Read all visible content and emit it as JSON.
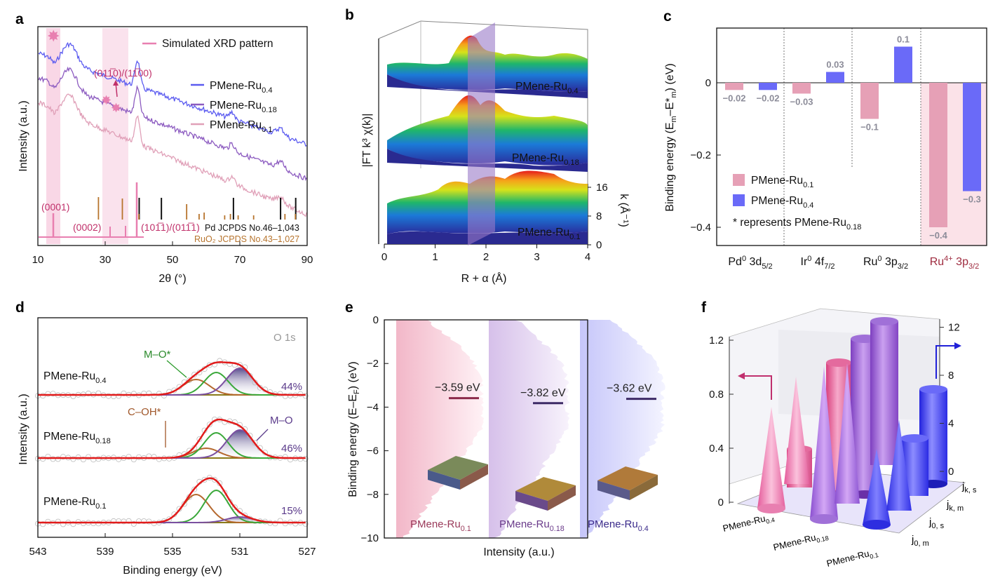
{
  "colors": {
    "ru04": "#5b5bf0",
    "ru018": "#8c5bc0",
    "ru01": "#e0a0b8",
    "pink": "#e87fb0",
    "pinkFill": "#f6c6dc",
    "pd": "#111111",
    "ruo2": "#b7742d",
    "barPink": "#e6a0b6",
    "barBlue": "#6a6af8",
    "barLabel": "#8c8c99",
    "fitRed": "#e21b1b",
    "fitGreen": "#3aa83a",
    "fitBrown": "#b5682e",
    "fitPurple": "#7a4fa0",
    "fitOlive": "#8a7a1a",
    "ru4plus": "#9e2a3e",
    "darkPurple": "#3c2a7a",
    "dosLine1": "#8c2a4a",
    "dosLine2": "#3d2a66"
  },
  "panels": {
    "a": {
      "label": "a",
      "chart_data": {
        "type": "line",
        "xlabel": "2θ (°)",
        "ylabel": "Intensity (a.u.)",
        "xlim": [
          10,
          90
        ],
        "xticks": [
          "10",
          "30",
          "50",
          "70",
          "90"
        ],
        "legend_sim": "Simulated XRD pattern",
        "series": [
          {
            "name": "PMene-Ru",
            "sub": "0.4",
            "color_key": "ru04"
          },
          {
            "name": "PMene-Ru",
            "sub": "0.18",
            "color_key": "ru018"
          },
          {
            "name": "PMene-Ru",
            "sub": "0.1",
            "color_key": "ru01"
          }
        ],
        "peak_labels": [
          "(0001)",
          "(0002)",
          "(101̅1)/(011̅1)",
          "(011̅0)/(11̅00)"
        ],
        "reference_pd": "Pd JCPDS No.46–1,043",
        "reference_ruo2": "RuO₂ JCPDS No.43–1,027",
        "pd_lines_2theta": [
          40.1,
          46.7,
          68.1,
          82.1,
          86.6
        ],
        "ruo2_lines_2theta": [
          28.0,
          35.1,
          40.0,
          54.2,
          57.9,
          59.4,
          65.5,
          67.2,
          69.5,
          74.1,
          83.4,
          86.5
        ]
      }
    },
    "b": {
      "label": "b",
      "chart_data": {
        "type": "surface3d",
        "xlabel": "R + α (Å)",
        "ylabel": "|FT k³ χ(k)|",
        "zlabel": "k (Å⁻¹)",
        "xticks": [
          "0",
          "1",
          "2",
          "3",
          "4"
        ],
        "zticks": [
          "0",
          "8",
          "16"
        ],
        "series": [
          {
            "name": "PMene-Ru",
            "sub": "0.4"
          },
          {
            "name": "PMene-Ru",
            "sub": "0.18"
          },
          {
            "name": "PMene-Ru",
            "sub": "0.1"
          }
        ]
      }
    },
    "c": {
      "label": "c",
      "chart_data": {
        "type": "bar",
        "ylabel": "Binding energy (E",
        "ylim": [
          -0.45,
          0.15
        ],
        "yticks": [
          "0",
          "-0.2",
          "-0.4"
        ],
        "categories": [
          {
            "main": "Pd",
            "sup": "0",
            "tail": " 3d",
            "sub": "5/2"
          },
          {
            "main": "Ir",
            "sup": "0",
            "tail": " 4f",
            "sub": "7/2"
          },
          {
            "main": "Ru",
            "sup": "0",
            "tail": " 3p",
            "sub": "3/2"
          },
          {
            "main": "Ru",
            "sup": "4+",
            "tail": " 3p",
            "sub": "3/2"
          }
        ],
        "series": [
          {
            "name": "PMene-Ru",
            "sub": "0.1",
            "values": [
              -0.02,
              -0.03,
              -0.1,
              -0.4
            ],
            "labels": [
              "−0.02",
              "−0.03",
              "−0.1",
              "−0.4"
            ]
          },
          {
            "name": "PMene-Ru",
            "sub": "0.4",
            "values": [
              -0.02,
              0.03,
              0.1,
              -0.3
            ],
            "labels": [
              "−0.02",
              "0.03",
              "0.1",
              "−0.3"
            ]
          }
        ],
        "note": "* represents PMene-Ru"
      }
    },
    "d": {
      "label": "d",
      "chart_data": {
        "type": "line",
        "xlabel": "Binding energy (eV)",
        "ylabel": "Intensity (a.u.)",
        "xlim": [
          543,
          527
        ],
        "xticks": [
          "543",
          "539",
          "535",
          "531",
          "527"
        ],
        "tag": "O 1s",
        "series": [
          {
            "name": "PMene-Ru",
            "sub": "0.4",
            "percent": "44%"
          },
          {
            "name": "PMene-Ru",
            "sub": "0.18",
            "percent": "46%"
          },
          {
            "name": "PMene-Ru",
            "sub": "0.1",
            "percent": "15%"
          }
        ],
        "annotations": [
          "M–O*",
          "C–OH*",
          "M–O"
        ]
      }
    },
    "e": {
      "label": "e",
      "chart_data": {
        "type": "area",
        "xlabel": "Intensity (a.u.)",
        "ylabel": "Binding energy (E–E",
        "ylim": [
          -10,
          0
        ],
        "yticks": [
          "0",
          "-2",
          "-4",
          "-6",
          "-8",
          "-10"
        ],
        "series": [
          {
            "name": "PMene-Ru",
            "sub": "0.1",
            "d_band_center": "−3.59 eV",
            "value": -3.59
          },
          {
            "name": "PMene-Ru",
            "sub": "0.18",
            "d_band_center": "−3.82 eV",
            "value": -3.82
          },
          {
            "name": "PMene-Ru",
            "sub": "0.4",
            "d_band_center": "−3.62 eV",
            "value": -3.62
          }
        ]
      }
    },
    "f": {
      "label": "f",
      "chart_data": {
        "type": "bar3d",
        "left_axis_ticks": [
          "0",
          "0.4",
          "0.8",
          "1.2"
        ],
        "right_axis_ticks": [
          "0",
          "4",
          "8",
          "12"
        ],
        "categories": [
          {
            "name": "PMene-Ru",
            "sub": "0.4"
          },
          {
            "name": "PMene-Ru",
            "sub": "0.18"
          },
          {
            "name": "PMene-Ru",
            "sub": "0.1"
          }
        ],
        "depth_labels": [
          {
            "main": "j",
            "sub": "0, m"
          },
          {
            "main": "j",
            "sub": "0, s"
          },
          {
            "main": "j",
            "sub": "k, m"
          },
          {
            "main": "j",
            "sub": "k, s"
          }
        ]
      }
    }
  }
}
